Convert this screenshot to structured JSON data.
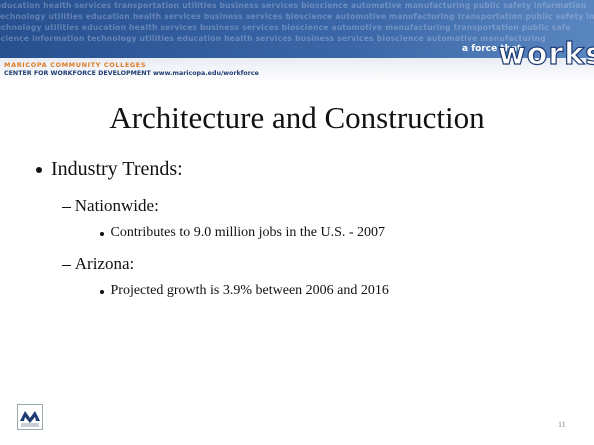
{
  "header": {
    "banner_lines": [
      "education health services transportation utilities business services bioscience automotive manufacturing public safety information",
      "technology utilities education health services business services bioscience automotive manufacturing transportation public safety informati",
      "echnology utilities education health services business services bioscience automotive manufacturing transportation public safe",
      "science information technology utilities education health services business services bioscience automotive manufacturing"
    ],
    "tagline_small": "a force that",
    "tagline_big": "works",
    "college": "MARICOPA COMMUNITY COLLEGES",
    "center": "CENTER FOR WORKFORCE DEVELOPMENT www.maricopa.edu/workforce"
  },
  "slide": {
    "title": "Architecture and Construction",
    "bullets": [
      {
        "text": "Industry Trends:",
        "children": [
          {
            "text": "Nationwide:",
            "children": [
              {
                "text": "Contributes to 9.0 million jobs in the U.S. - 2007"
              }
            ]
          },
          {
            "text": "Arizona:",
            "children": [
              {
                "text": "Projected growth is 3.9% between 2006 and 2016"
              }
            ]
          }
        ]
      }
    ],
    "page_number": "11"
  }
}
